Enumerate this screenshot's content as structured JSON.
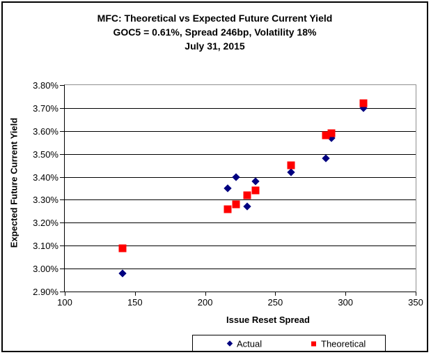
{
  "page": {
    "title_lines": [
      "MFC: Theoretical vs Expected Future Current Yield",
      "GOC5 = 0.61%, Spread 246bp, Volatility 18%",
      "July 31, 2015"
    ]
  },
  "chart_data": {
    "type": "scatter",
    "title": "MFC: Theoretical vs Expected Future Current Yield",
    "subtitle": "GOC5 = 0.61%, Spread 246bp, Volatility 18%",
    "date_label": "July 31, 2015",
    "xlabel": "Issue Reset Spread",
    "ylabel": "Expected Future Current Yield",
    "xlim": [
      100,
      350
    ],
    "ylim": [
      2.9,
      3.8
    ],
    "x_tick_labels": [
      "100",
      "150",
      "200",
      "250",
      "300",
      "350"
    ],
    "y_tick_labels": [
      "2.90%",
      "3.00%",
      "3.10%",
      "3.20%",
      "3.30%",
      "3.40%",
      "3.50%",
      "3.60%",
      "3.70%",
      "3.80%"
    ],
    "grid": true,
    "legend_position": "bottom-center",
    "series": [
      {
        "name": "Actual",
        "marker": "diamond",
        "color": "#000080",
        "points": [
          [
            141,
            2.98
          ],
          [
            216,
            3.35
          ],
          [
            222,
            3.4
          ],
          [
            230,
            3.27
          ],
          [
            236,
            3.38
          ],
          [
            261,
            3.42
          ],
          [
            286,
            3.48
          ],
          [
            290,
            3.57
          ],
          [
            313,
            3.7
          ]
        ]
      },
      {
        "name": "Theoretical",
        "marker": "square",
        "color": "#FF0000",
        "points": [
          [
            141,
            3.09
          ],
          [
            216,
            3.26
          ],
          [
            222,
            3.28
          ],
          [
            230,
            3.32
          ],
          [
            236,
            3.34
          ],
          [
            261,
            3.45
          ],
          [
            286,
            3.58
          ],
          [
            290,
            3.59
          ],
          [
            313,
            3.72
          ]
        ]
      }
    ]
  }
}
